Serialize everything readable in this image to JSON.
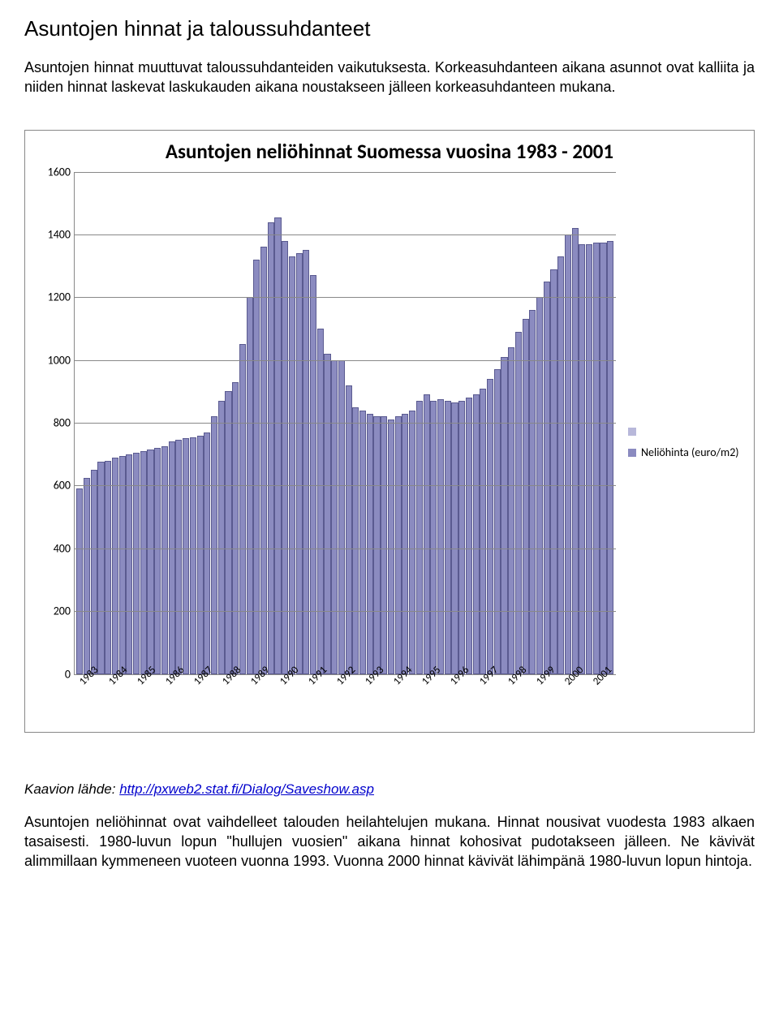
{
  "heading": "Asuntojen hinnat ja taloussuhdanteet",
  "intro": "Asuntojen hinnat muuttuvat taloussuhdanteiden vaikutuksesta. Korkeasuhdanteen aikana asunnot ovat kalliita ja niiden hinnat laskevat laskukauden aikana noustakseen jälleen korkeasuhdanteen mukana.",
  "chart": {
    "type": "bar",
    "title": "Asuntojen neliöhinnat Suomessa vuosina 1983 - 2001",
    "title_fontsize": 25,
    "bar_color": "#8b8bc0",
    "bar_border_color": "#5a5a90",
    "grid_color": "#888888",
    "background_color": "#ffffff",
    "ylim": [
      0,
      1600
    ],
    "ytick_step": 200,
    "yticks": [
      0,
      200,
      400,
      600,
      800,
      1000,
      1200,
      1400,
      1600
    ],
    "xlabel_fontsize": 13,
    "ylabel_fontsize": 14,
    "x_years": [
      "1983",
      "1984",
      "1985",
      "1986",
      "1987",
      "1988",
      "1989",
      "1990",
      "1991",
      "1992",
      "1993",
      "1994",
      "1995",
      "1996",
      "1997",
      "1998",
      "1999",
      "2000",
      "2001"
    ],
    "values": [
      590,
      625,
      650,
      675,
      680,
      690,
      695,
      700,
      705,
      710,
      715,
      720,
      725,
      740,
      745,
      750,
      755,
      760,
      770,
      820,
      870,
      900,
      930,
      1050,
      1200,
      1320,
      1360,
      1440,
      1455,
      1380,
      1330,
      1340,
      1350,
      1270,
      1100,
      1020,
      1000,
      1000,
      920,
      850,
      840,
      830,
      820,
      820,
      810,
      820,
      830,
      840,
      870,
      890,
      870,
      875,
      870,
      865,
      870,
      880,
      890,
      910,
      940,
      970,
      1010,
      1040,
      1090,
      1130,
      1160,
      1200,
      1250,
      1290,
      1330,
      1400,
      1420,
      1370,
      1370,
      1375,
      1375,
      1380
    ],
    "legend": {
      "items": [
        {
          "label": "",
          "color": "#b8b8da"
        },
        {
          "label": "Neliöhinta (euro/m2)",
          "color": "#8b8bc0"
        }
      ]
    }
  },
  "source": {
    "prefix": "Kaavion lähde: ",
    "link_text": "http://pxweb2.stat.fi/Dialog/Saveshow.asp"
  },
  "outro": "Asuntojen neliöhinnat ovat vaihdelleet talouden heilahtelujen mukana. Hinnat nousivat vuodesta 1983 alkaen tasaisesti. 1980-luvun lopun \"hullujen vuosien\" aikana hinnat kohosivat pudotakseen jälleen. Ne kävivät alimmillaan kymmeneen vuoteen vuonna 1993. Vuonna 2000 hinnat kävivät lähimpänä 1980-luvun lopun hintoja."
}
